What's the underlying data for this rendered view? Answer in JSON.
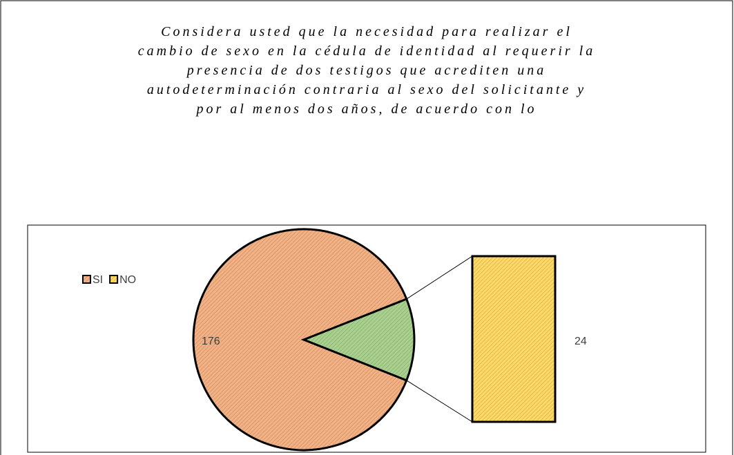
{
  "chart_data": {
    "type": "pie-of-bar",
    "title": [
      "Considera usted que la necesidad  para realizar el",
      "cambio de sexo en la cédula de identidad al requerir  la",
      "presencia de dos testigos que acrediten una",
      "autodeterminación contraria al sexo del solicitante y",
      "por al menos dos años, de acuerdo con lo"
    ],
    "categories": [
      "SI",
      "NO"
    ],
    "values": [
      176,
      24
    ],
    "colors": [
      "#f4b183",
      "#ffd966"
    ],
    "slice_colors": [
      "#f4b183",
      "#a9d18e"
    ],
    "legend": "top-left"
  }
}
